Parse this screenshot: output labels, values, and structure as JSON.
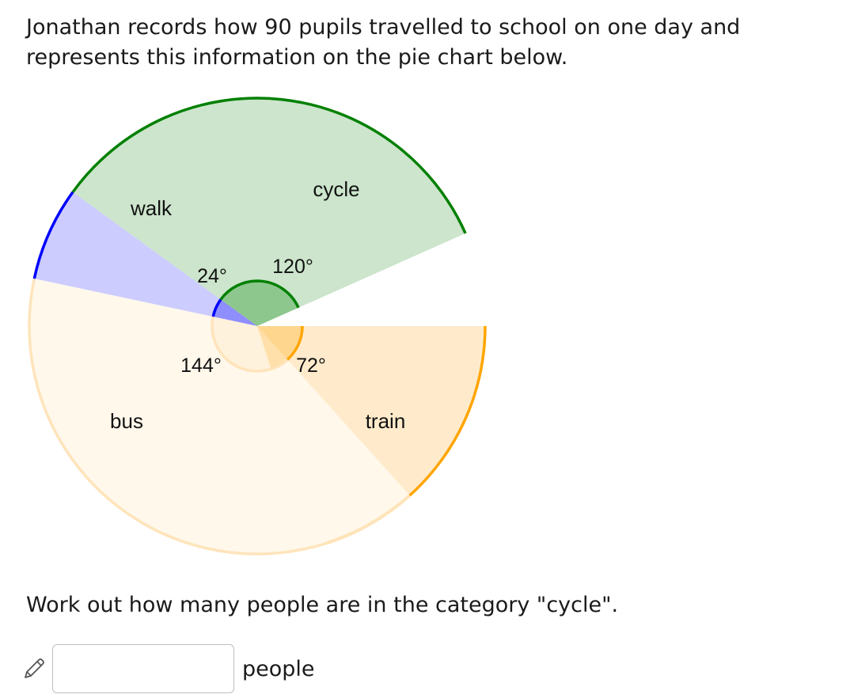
{
  "question": {
    "intro": "Jonathan records how 90 pupils travelled to school on one day and represents this information on the pie chart below.",
    "prompt": "Work out how many people are in the category \"cycle\"."
  },
  "answer": {
    "value": "",
    "unit": "people"
  },
  "icons": {
    "edit": "pencil-icon"
  },
  "chart_data": {
    "type": "pie",
    "slices": [
      {
        "label": "walk",
        "angle": 24,
        "angle_label": "24°",
        "fill": "#ccccff",
        "edge": "#0000ff"
      },
      {
        "label": "cycle",
        "angle": 120,
        "angle_label": "120°",
        "fill": "#cce5cc",
        "edge": "#008000"
      },
      {
        "label": "train",
        "angle": 72,
        "angle_label": "72°",
        "fill": "#ffebcc",
        "edge": "#ffa500"
      },
      {
        "label": "bus",
        "angle": 144,
        "angle_label": "144°",
        "fill": "#fff8eb",
        "edge": "#ffe4bb"
      }
    ]
  }
}
